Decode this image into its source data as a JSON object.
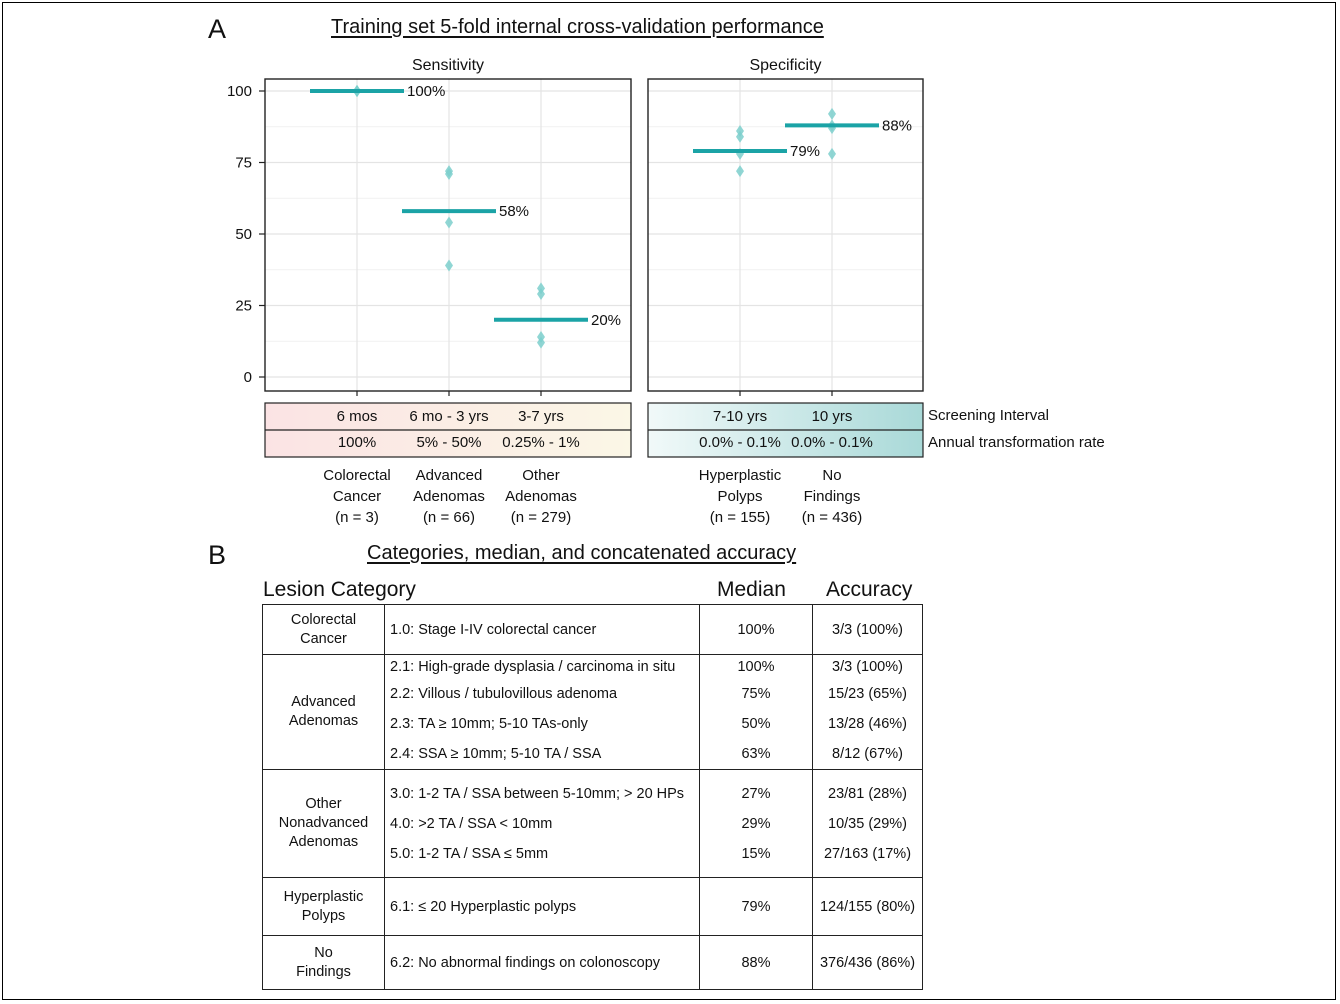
{
  "panel_a": {
    "label": "A",
    "title": "Training set 5-fold internal cross-validation performance"
  },
  "panel_b": {
    "label": "B",
    "title": "Categories, median, and concatenated accuracy"
  },
  "chart_data": {
    "type": "scatter",
    "title": "Training set 5-fold internal cross-validation performance",
    "ylim": [
      0,
      100
    ],
    "yticks": [
      "0",
      "25",
      "50",
      "75",
      "100"
    ],
    "grid": true,
    "facets": [
      {
        "name": "Sensitivity",
        "categories": [
          "Colorectal Cancer",
          "Advanced Adenomas",
          "Other Adenomas"
        ],
        "medians": [
          100,
          58,
          20
        ],
        "median_labels": [
          "100%",
          "58%",
          "20%"
        ],
        "folds": [
          [
            100,
            100,
            100,
            100,
            100
          ],
          [
            72,
            71,
            54,
            39
          ],
          [
            31,
            29,
            14,
            12
          ]
        ]
      },
      {
        "name": "Specificity",
        "categories": [
          "Hyperplastic Polyps",
          "No Findings"
        ],
        "medians": [
          79,
          88
        ],
        "median_labels": [
          "79%",
          "88%"
        ],
        "folds": [
          [
            86,
            84,
            78,
            72
          ],
          [
            92,
            88,
            87,
            78
          ]
        ]
      }
    ],
    "screening_interval": {
      "label": "Screening Interval",
      "values": [
        "6 mos",
        "6 mo - 3 yrs",
        "3-7 yrs",
        "7-10 yrs",
        "10 yrs"
      ]
    },
    "transformation_rate": {
      "label": "Annual transformation rate",
      "values": [
        "100%",
        "5% - 50%",
        "0.25% - 1%",
        "0.0% - 0.1%",
        "0.0% - 0.1%"
      ]
    },
    "category_labels": [
      [
        "Colorectal",
        "Cancer",
        "(n = 3)"
      ],
      [
        "Advanced",
        "Adenomas",
        "(n = 66)"
      ],
      [
        "Other",
        "Adenomas",
        "(n = 279)"
      ],
      [
        "Hyperplastic",
        "Polyps",
        "(n = 155)"
      ],
      [
        "No",
        "Findings",
        "(n = 436)"
      ]
    ],
    "colors": {
      "median_line": "#1ba3a6",
      "fold_points": "#7ccfcc",
      "left_gradient": [
        "#fbe3e4",
        "#fbf7e6"
      ],
      "right_gradient": [
        "#f1f9f9",
        "#a9d9d8"
      ]
    }
  },
  "table": {
    "headers": [
      "Lesion Category",
      "Median",
      "Accuracy"
    ],
    "groups": [
      {
        "category": [
          "Colorectal",
          "Cancer"
        ],
        "rows": [
          {
            "sub": "1.0: Stage I-IV colorectal cancer",
            "median": "100%",
            "accuracy": "3/3 (100%)"
          }
        ]
      },
      {
        "category": [
          "Advanced",
          "Adenomas"
        ],
        "rows": [
          {
            "sub": "2.1: High-grade dysplasia / carcinoma in situ",
            "median": "100%",
            "accuracy": "3/3 (100%)"
          },
          {
            "sub": "2.2: Villous / tubulovillous adenoma",
            "median": "75%",
            "accuracy": "15/23 (65%)"
          },
          {
            "sub": "2.3: TA ≥ 10mm; 5-10 TAs-only",
            "median": "50%",
            "accuracy": "13/28 (46%)"
          },
          {
            "sub": "2.4: SSA ≥ 10mm; 5-10 TA / SSA",
            "median": "63%",
            "accuracy": "8/12 (67%)"
          }
        ]
      },
      {
        "category": [
          "Other",
          "Nonadvanced",
          "Adenomas"
        ],
        "rows": [
          {
            "sub": "3.0: 1-2 TA / SSA between 5-10mm; > 20 HPs",
            "median": "27%",
            "accuracy": "23/81 (28%)"
          },
          {
            "sub": "4.0: >2 TA / SSA < 10mm",
            "median": "29%",
            "accuracy": "10/35 (29%)"
          },
          {
            "sub": "5.0: 1-2 TA / SSA ≤ 5mm",
            "median": "15%",
            "accuracy": "27/163 (17%)"
          }
        ]
      },
      {
        "category": [
          "Hyperplastic",
          "Polyps"
        ],
        "rows": [
          {
            "sub": "6.1: ≤ 20 Hyperplastic polyps",
            "median": "79%",
            "accuracy": "124/155 (80%)"
          }
        ]
      },
      {
        "category": [
          "No",
          "Findings"
        ],
        "rows": [
          {
            "sub": "6.2: No abnormal findings on colonoscopy",
            "median": "88%",
            "accuracy": "376/436 (86%)"
          }
        ]
      }
    ]
  }
}
